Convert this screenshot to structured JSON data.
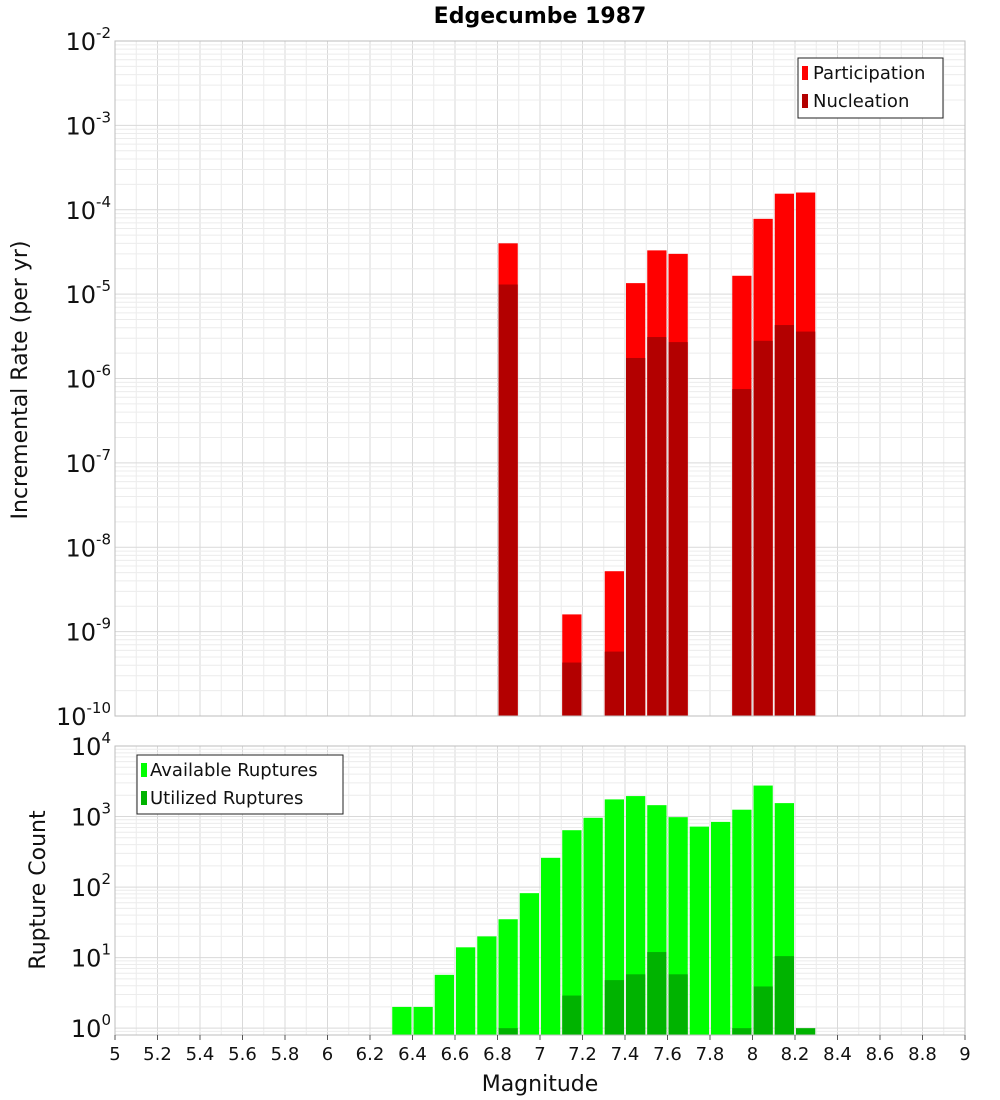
{
  "chart_data": [
    {
      "type": "bar",
      "title": "Edgecumbe 1987",
      "xlabel": "",
      "ylabel": "Incremental Rate (per yr)",
      "yscale": "log",
      "ylim": [
        1e-10,
        0.01
      ],
      "xlim": [
        5,
        9
      ],
      "bin_width": 0.1,
      "legend_position": "top-right",
      "grid": true,
      "y_ticks": [
        {
          "base": "10",
          "exp": "-10",
          "value": 1e-10
        },
        {
          "base": "10",
          "exp": "-9",
          "value": 1e-09
        },
        {
          "base": "10",
          "exp": "-8",
          "value": 1e-08
        },
        {
          "base": "10",
          "exp": "-7",
          "value": 1e-07
        },
        {
          "base": "10",
          "exp": "-6",
          "value": 1e-06
        },
        {
          "base": "10",
          "exp": "-5",
          "value": 1e-05
        },
        {
          "base": "10",
          "exp": "-4",
          "value": 0.0001
        },
        {
          "base": "10",
          "exp": "-3",
          "value": 0.001
        },
        {
          "base": "10",
          "exp": "-2",
          "value": 0.01
        }
      ],
      "series": [
        {
          "name": "Participation",
          "color": "#ff0000",
          "points": [
            {
              "x": 6.85,
              "y": 4e-05
            },
            {
              "x": 7.15,
              "y": 1.6e-09
            },
            {
              "x": 7.35,
              "y": 5.2e-09
            },
            {
              "x": 7.45,
              "y": 1.35e-05
            },
            {
              "x": 7.55,
              "y": 3.3e-05
            },
            {
              "x": 7.65,
              "y": 3e-05
            },
            {
              "x": 7.95,
              "y": 1.65e-05
            },
            {
              "x": 8.05,
              "y": 7.8e-05
            },
            {
              "x": 8.15,
              "y": 0.000155
            },
            {
              "x": 8.25,
              "y": 0.00016
            }
          ]
        },
        {
          "name": "Nucleation",
          "color": "#b30000",
          "points": [
            {
              "x": 6.85,
              "y": 1.3e-05
            },
            {
              "x": 7.15,
              "y": 4.3e-10
            },
            {
              "x": 7.35,
              "y": 5.8e-10
            },
            {
              "x": 7.45,
              "y": 1.75e-06
            },
            {
              "x": 7.55,
              "y": 3.1e-06
            },
            {
              "x": 7.65,
              "y": 2.7e-06
            },
            {
              "x": 7.95,
              "y": 7.5e-07
            },
            {
              "x": 8.05,
              "y": 2.8e-06
            },
            {
              "x": 8.15,
              "y": 4.3e-06
            },
            {
              "x": 8.25,
              "y": 3.6e-06
            }
          ]
        }
      ]
    },
    {
      "type": "bar",
      "title": "",
      "xlabel": "Magnitude",
      "ylabel": "Rupture Count",
      "yscale": "log",
      "ylim": [
        0.8,
        10000
      ],
      "xlim": [
        5,
        9
      ],
      "bin_width": 0.1,
      "legend_position": "top-left",
      "grid": true,
      "x_ticks": [
        "5",
        "5.2",
        "5.4",
        "5.6",
        "5.8",
        "6",
        "6.2",
        "6.4",
        "6.6",
        "6.8",
        "7",
        "7.2",
        "7.4",
        "7.6",
        "7.8",
        "8",
        "8.2",
        "8.4",
        "8.6",
        "8.8",
        "9"
      ],
      "y_ticks": [
        {
          "base": "10",
          "exp": "0",
          "value": 1
        },
        {
          "base": "10",
          "exp": "1",
          "value": 10
        },
        {
          "base": "10",
          "exp": "2",
          "value": 100
        },
        {
          "base": "10",
          "exp": "3",
          "value": 1000
        },
        {
          "base": "10",
          "exp": "4",
          "value": 10000
        }
      ],
      "series": [
        {
          "name": "Available Ruptures",
          "color": "#00ff00",
          "points": [
            {
              "x": 6.35,
              "y": 2
            },
            {
              "x": 6.45,
              "y": 2
            },
            {
              "x": 6.55,
              "y": 5.7
            },
            {
              "x": 6.65,
              "y": 14
            },
            {
              "x": 6.75,
              "y": 20
            },
            {
              "x": 6.85,
              "y": 35
            },
            {
              "x": 6.95,
              "y": 82
            },
            {
              "x": 7.05,
              "y": 260
            },
            {
              "x": 7.15,
              "y": 640
            },
            {
              "x": 7.25,
              "y": 960
            },
            {
              "x": 7.35,
              "y": 1750
            },
            {
              "x": 7.45,
              "y": 1950
            },
            {
              "x": 7.55,
              "y": 1450
            },
            {
              "x": 7.65,
              "y": 980
            },
            {
              "x": 7.75,
              "y": 720
            },
            {
              "x": 7.85,
              "y": 840
            },
            {
              "x": 7.95,
              "y": 1250
            },
            {
              "x": 8.05,
              "y": 2750
            },
            {
              "x": 8.15,
              "y": 1550
            }
          ]
        },
        {
          "name": "Utilized Ruptures",
          "color": "#00b300",
          "points": [
            {
              "x": 6.85,
              "y": 1
            },
            {
              "x": 7.15,
              "y": 2.9
            },
            {
              "x": 7.35,
              "y": 4.8
            },
            {
              "x": 7.45,
              "y": 5.8
            },
            {
              "x": 7.55,
              "y": 12
            },
            {
              "x": 7.65,
              "y": 5.8
            },
            {
              "x": 7.95,
              "y": 1
            },
            {
              "x": 8.05,
              "y": 3.9
            },
            {
              "x": 8.15,
              "y": 10.5
            },
            {
              "x": 8.25,
              "y": 1
            }
          ]
        }
      ]
    }
  ]
}
